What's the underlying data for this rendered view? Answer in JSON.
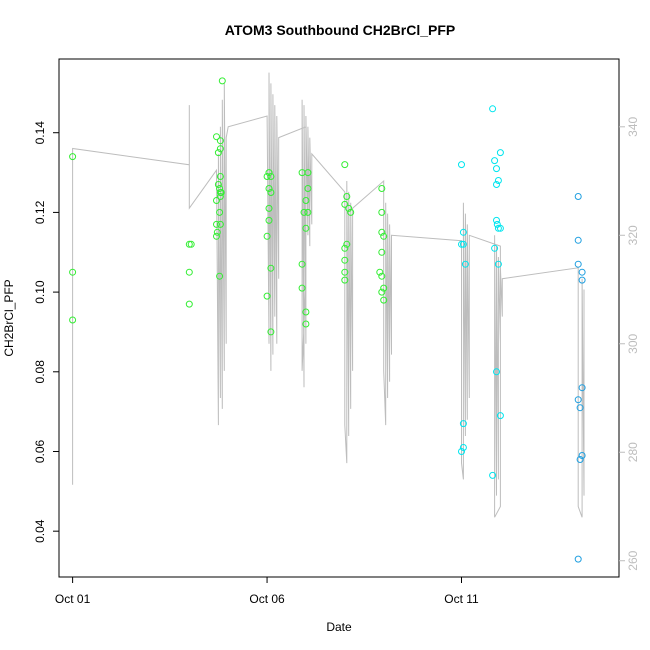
{
  "chart_data": {
    "type": "scatter",
    "title": "ATOM3 Southbound CH2BrCl_PFP",
    "xlabel": "Date",
    "ylabel": "CH2BrCl_PFP",
    "x_ticks": [
      {
        "label": "Oct 01",
        "value": 1
      },
      {
        "label": "Oct 06",
        "value": 6
      },
      {
        "label": "Oct 11",
        "value": 11
      }
    ],
    "xlim": [
      0.65,
      15.05
    ],
    "ylim": [
      0.0285,
      0.1585
    ],
    "y_ticks": [
      "0.04",
      "0.06",
      "0.08",
      "0.10",
      "0.12",
      "0.14"
    ],
    "y2lim": [
      257,
      352.5
    ],
    "y2_ticks": [
      "260",
      "280",
      "300",
      "320",
      "340"
    ],
    "grid": false,
    "colors": {
      "green": "#33ee33",
      "cyan": "#00e5ee",
      "blue": "#1f9fe0",
      "line": "#bdbdbd",
      "frame": "#000000",
      "right_axis": "#bdbdbd"
    },
    "points": [
      {
        "x": 1.0,
        "y": 0.134,
        "c": "green"
      },
      {
        "x": 1.0,
        "y": 0.105,
        "c": "green"
      },
      {
        "x": 1.0,
        "y": 0.093,
        "c": "green"
      },
      {
        "x": 4.0,
        "y": 0.112,
        "c": "green"
      },
      {
        "x": 4.05,
        "y": 0.112,
        "c": "green"
      },
      {
        "x": 4.0,
        "y": 0.105,
        "c": "green"
      },
      {
        "x": 4.0,
        "y": 0.097,
        "c": "green"
      },
      {
        "x": 4.7,
        "y": 0.139,
        "c": "green"
      },
      {
        "x": 4.8,
        "y": 0.138,
        "c": "green"
      },
      {
        "x": 4.85,
        "y": 0.153,
        "c": "green"
      },
      {
        "x": 4.8,
        "y": 0.136,
        "c": "green"
      },
      {
        "x": 4.75,
        "y": 0.135,
        "c": "green"
      },
      {
        "x": 4.8,
        "y": 0.129,
        "c": "green"
      },
      {
        "x": 4.75,
        "y": 0.127,
        "c": "green"
      },
      {
        "x": 4.78,
        "y": 0.126,
        "c": "green"
      },
      {
        "x": 4.82,
        "y": 0.125,
        "c": "green"
      },
      {
        "x": 4.8,
        "y": 0.124,
        "c": "green"
      },
      {
        "x": 4.7,
        "y": 0.123,
        "c": "green"
      },
      {
        "x": 4.78,
        "y": 0.12,
        "c": "green"
      },
      {
        "x": 4.7,
        "y": 0.117,
        "c": "green"
      },
      {
        "x": 4.8,
        "y": 0.117,
        "c": "green"
      },
      {
        "x": 4.72,
        "y": 0.115,
        "c": "green"
      },
      {
        "x": 4.7,
        "y": 0.114,
        "c": "green"
      },
      {
        "x": 4.78,
        "y": 0.104,
        "c": "green"
      },
      {
        "x": 4.8,
        "y": 0.125,
        "c": "green"
      },
      {
        "x": 6.05,
        "y": 0.13,
        "c": "green"
      },
      {
        "x": 6.1,
        "y": 0.129,
        "c": "green"
      },
      {
        "x": 6.0,
        "y": 0.129,
        "c": "green"
      },
      {
        "x": 6.05,
        "y": 0.126,
        "c": "green"
      },
      {
        "x": 6.1,
        "y": 0.125,
        "c": "green"
      },
      {
        "x": 6.05,
        "y": 0.121,
        "c": "green"
      },
      {
        "x": 6.05,
        "y": 0.118,
        "c": "green"
      },
      {
        "x": 6.0,
        "y": 0.114,
        "c": "green"
      },
      {
        "x": 6.1,
        "y": 0.106,
        "c": "green"
      },
      {
        "x": 6.0,
        "y": 0.099,
        "c": "green"
      },
      {
        "x": 6.1,
        "y": 0.09,
        "c": "green"
      },
      {
        "x": 6.9,
        "y": 0.13,
        "c": "green"
      },
      {
        "x": 7.05,
        "y": 0.13,
        "c": "green"
      },
      {
        "x": 7.05,
        "y": 0.126,
        "c": "green"
      },
      {
        "x": 7.0,
        "y": 0.123,
        "c": "green"
      },
      {
        "x": 6.95,
        "y": 0.12,
        "c": "green"
      },
      {
        "x": 7.05,
        "y": 0.12,
        "c": "green"
      },
      {
        "x": 7.0,
        "y": 0.116,
        "c": "green"
      },
      {
        "x": 6.9,
        "y": 0.107,
        "c": "green"
      },
      {
        "x": 6.9,
        "y": 0.101,
        "c": "green"
      },
      {
        "x": 7.0,
        "y": 0.095,
        "c": "green"
      },
      {
        "x": 7.0,
        "y": 0.092,
        "c": "green"
      },
      {
        "x": 8.0,
        "y": 0.132,
        "c": "green"
      },
      {
        "x": 8.05,
        "y": 0.124,
        "c": "green"
      },
      {
        "x": 8.0,
        "y": 0.122,
        "c": "green"
      },
      {
        "x": 8.1,
        "y": 0.121,
        "c": "green"
      },
      {
        "x": 8.15,
        "y": 0.12,
        "c": "green"
      },
      {
        "x": 8.05,
        "y": 0.112,
        "c": "green"
      },
      {
        "x": 8.0,
        "y": 0.111,
        "c": "green"
      },
      {
        "x": 8.0,
        "y": 0.108,
        "c": "green"
      },
      {
        "x": 8.0,
        "y": 0.105,
        "c": "green"
      },
      {
        "x": 8.0,
        "y": 0.103,
        "c": "green"
      },
      {
        "x": 8.95,
        "y": 0.126,
        "c": "green"
      },
      {
        "x": 8.95,
        "y": 0.12,
        "c": "green"
      },
      {
        "x": 8.95,
        "y": 0.115,
        "c": "green"
      },
      {
        "x": 9.0,
        "y": 0.114,
        "c": "green"
      },
      {
        "x": 8.95,
        "y": 0.11,
        "c": "green"
      },
      {
        "x": 8.9,
        "y": 0.105,
        "c": "green"
      },
      {
        "x": 8.95,
        "y": 0.104,
        "c": "green"
      },
      {
        "x": 9.0,
        "y": 0.101,
        "c": "green"
      },
      {
        "x": 8.95,
        "y": 0.1,
        "c": "green"
      },
      {
        "x": 9.0,
        "y": 0.098,
        "c": "green"
      },
      {
        "x": 11.0,
        "y": 0.132,
        "c": "cyan"
      },
      {
        "x": 11.05,
        "y": 0.115,
        "c": "cyan"
      },
      {
        "x": 11.05,
        "y": 0.112,
        "c": "cyan"
      },
      {
        "x": 11.0,
        "y": 0.112,
        "c": "cyan"
      },
      {
        "x": 11.1,
        "y": 0.107,
        "c": "cyan"
      },
      {
        "x": 11.05,
        "y": 0.067,
        "c": "cyan"
      },
      {
        "x": 11.05,
        "y": 0.061,
        "c": "cyan"
      },
      {
        "x": 11.0,
        "y": 0.06,
        "c": "cyan"
      },
      {
        "x": 11.8,
        "y": 0.146,
        "c": "cyan"
      },
      {
        "x": 12.0,
        "y": 0.135,
        "c": "cyan"
      },
      {
        "x": 11.85,
        "y": 0.133,
        "c": "cyan"
      },
      {
        "x": 11.9,
        "y": 0.131,
        "c": "cyan"
      },
      {
        "x": 11.95,
        "y": 0.128,
        "c": "cyan"
      },
      {
        "x": 11.9,
        "y": 0.127,
        "c": "cyan"
      },
      {
        "x": 11.9,
        "y": 0.118,
        "c": "cyan"
      },
      {
        "x": 11.92,
        "y": 0.117,
        "c": "cyan"
      },
      {
        "x": 11.95,
        "y": 0.116,
        "c": "cyan"
      },
      {
        "x": 12.0,
        "y": 0.116,
        "c": "cyan"
      },
      {
        "x": 11.85,
        "y": 0.111,
        "c": "cyan"
      },
      {
        "x": 11.95,
        "y": 0.107,
        "c": "cyan"
      },
      {
        "x": 11.9,
        "y": 0.08,
        "c": "cyan"
      },
      {
        "x": 12.0,
        "y": 0.069,
        "c": "cyan"
      },
      {
        "x": 11.8,
        "y": 0.054,
        "c": "cyan"
      },
      {
        "x": 14.0,
        "y": 0.124,
        "c": "blue"
      },
      {
        "x": 14.0,
        "y": 0.113,
        "c": "blue"
      },
      {
        "x": 14.0,
        "y": 0.107,
        "c": "blue"
      },
      {
        "x": 14.1,
        "y": 0.105,
        "c": "blue"
      },
      {
        "x": 14.1,
        "y": 0.103,
        "c": "blue"
      },
      {
        "x": 14.1,
        "y": 0.076,
        "c": "blue"
      },
      {
        "x": 14.0,
        "y": 0.073,
        "c": "blue"
      },
      {
        "x": 14.05,
        "y": 0.071,
        "c": "blue"
      },
      {
        "x": 14.1,
        "y": 0.059,
        "c": "blue"
      },
      {
        "x": 14.05,
        "y": 0.058,
        "c": "blue"
      },
      {
        "x": 14.0,
        "y": 0.033,
        "c": "blue"
      }
    ],
    "secondary_line": {
      "x": [
        1.0,
        1.0,
        1.0,
        4.0,
        4.0,
        4.0,
        4.0,
        4.7,
        4.75,
        4.75,
        4.8,
        4.8,
        4.85,
        4.85,
        4.9,
        4.9,
        4.95,
        4.95,
        5.0,
        6.0,
        6.05,
        6.05,
        6.1,
        6.1,
        6.15,
        6.15,
        6.2,
        6.2,
        6.25,
        6.25,
        6.3,
        6.3,
        7.0,
        7.0,
        6.9,
        6.9,
        6.95,
        6.95,
        7.0,
        7.0,
        7.05,
        7.05,
        7.1,
        7.1,
        7.15,
        7.15,
        8.0,
        8.0,
        8.05,
        8.05,
        8.1,
        8.1,
        8.15,
        8.15,
        8.2,
        8.2,
        9.0,
        9.0,
        9.05,
        9.05,
        9.1,
        9.1,
        9.15,
        9.15,
        9.2,
        9.2,
        11.0,
        11.0,
        11.05,
        11.05,
        11.1,
        11.1,
        11.15,
        11.15,
        11.2,
        11.2,
        12.0,
        12.0,
        11.85,
        11.85,
        11.9,
        11.9,
        11.95,
        11.95,
        12.0,
        12.0,
        12.05,
        12.05,
        14.0,
        14.0,
        14.1,
        14.1,
        14.15,
        14.15
      ],
      "y": [
        274,
        336,
        336,
        333,
        333,
        344,
        325,
        332,
        285,
        335,
        290,
        340,
        288,
        345,
        295,
        348,
        300,
        338,
        340,
        342,
        300,
        350,
        295,
        348,
        298,
        346,
        305,
        344,
        300,
        342,
        312,
        338,
        340,
        312,
        295,
        345,
        292,
        344,
        300,
        342,
        320,
        340,
        318,
        338,
        322,
        335,
        328,
        285,
        278,
        330,
        283,
        328,
        288,
        326,
        295,
        325,
        330,
        295,
        285,
        326,
        290,
        324,
        293,
        322,
        298,
        320,
        319,
        278,
        275,
        326,
        283,
        324,
        286,
        322,
        290,
        320,
        318,
        270,
        268,
        320,
        272,
        318,
        275,
        316,
        300,
        314,
        305,
        312,
        314,
        270,
        268,
        312,
        272,
        310
      ]
    }
  }
}
